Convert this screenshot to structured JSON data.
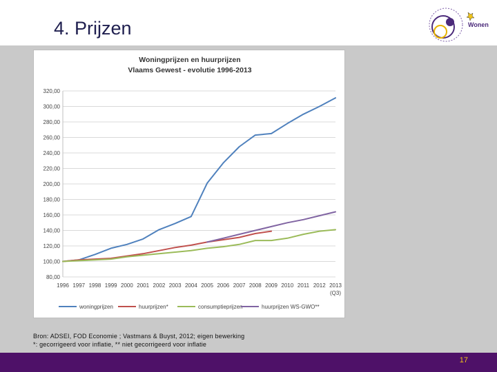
{
  "slide": {
    "title": "4. Prijzen",
    "logo_text": "Wonen",
    "source_line1": "Bron: ADSEI, FOD Economie ; Vastmans & Buyst, 2012; eigen bewerking",
    "source_line2": "*: gecorrigeerd voor inflatie, ** niet gecorrigeerd voor inflatie",
    "page_number": "17"
  },
  "colors": {
    "footer": "#4e1168",
    "page_number": "#f0c419",
    "title": "#1f1f4f"
  },
  "chart_data": {
    "type": "line",
    "title": "Woningprijzen en huurprijzen",
    "subtitle": "Vlaams Gewest - evolutie 1996-2013",
    "categories": [
      "1996",
      "1997",
      "1998",
      "1999",
      "2000",
      "2001",
      "2002",
      "2003",
      "2004",
      "2005",
      "2006",
      "2007",
      "2008",
      "2009",
      "2010",
      "2011",
      "2012",
      "2013"
    ],
    "last_category_note": "(Q3)",
    "ylim": [
      80,
      320
    ],
    "yticks": [
      "80,00",
      "100,00",
      "120,00",
      "140,00",
      "160,00",
      "180,00",
      "200,00",
      "220,00",
      "240,00",
      "260,00",
      "280,00",
      "300,00",
      "320,00"
    ],
    "grid": true,
    "legend_position": "bottom",
    "series": [
      {
        "name": "woningprijzen",
        "color": "#4f81bd",
        "values": [
          100,
          102,
          109,
          117,
          122,
          129,
          141,
          149,
          158,
          201,
          227,
          248,
          263,
          265,
          278,
          290,
          300,
          311
        ]
      },
      {
        "name": "huurprijzen*",
        "color": "#c0504d",
        "values": [
          100,
          102,
          103,
          104,
          107,
          110,
          114,
          118,
          121,
          125,
          128,
          131,
          136,
          139,
          null,
          null,
          null,
          null
        ]
      },
      {
        "name": "consumptieprijzen",
        "color": "#9bbb59",
        "values": [
          100,
          101,
          102,
          103,
          106,
          108,
          110,
          112,
          114,
          117,
          119,
          122,
          127,
          127,
          130,
          135,
          139,
          141
        ]
      },
      {
        "name": "huurprijzen WS-GWO**",
        "color": "#8064a2",
        "values": [
          null,
          null,
          null,
          null,
          null,
          null,
          null,
          null,
          null,
          125,
          130,
          135,
          140,
          145,
          150,
          154,
          159,
          164
        ]
      }
    ]
  }
}
